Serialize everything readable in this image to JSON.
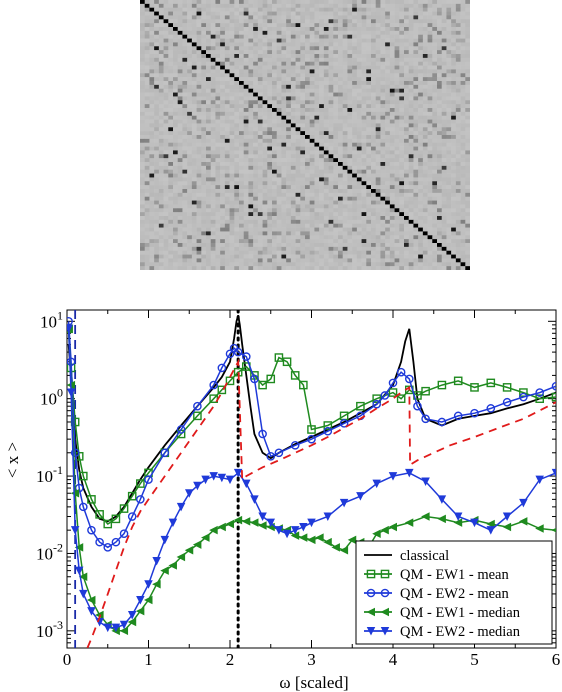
{
  "chart_data": [
    {
      "type": "heatmap",
      "rows": 70,
      "cols": 70,
      "colormap": [
        "#c4c4c4",
        "#000000"
      ],
      "values_note": "",
      "diagonal_value": 1.0,
      "background_value": 0.0,
      "highlights": [
        [
          12,
          3,
          0.9
        ],
        [
          15,
          9,
          0.8
        ],
        [
          24,
          7,
          0.85
        ],
        [
          33,
          6,
          0.9
        ],
        [
          40,
          5,
          0.7
        ],
        [
          45,
          2,
          0.85
        ],
        [
          52,
          11,
          0.8
        ],
        [
          60,
          14,
          0.75
        ],
        [
          48,
          20,
          0.9
        ],
        [
          36,
          18,
          0.85
        ],
        [
          53,
          23,
          0.9
        ],
        [
          55,
          23,
          0.8
        ],
        [
          29,
          10,
          0.7
        ],
        [
          22,
          31,
          0.85
        ],
        [
          30,
          37,
          0.8
        ],
        [
          27,
          38,
          0.85
        ],
        [
          44,
          28,
          0.9
        ],
        [
          50,
          33,
          0.8
        ],
        [
          57,
          40,
          0.75
        ],
        [
          38,
          46,
          0.85
        ],
        [
          42,
          51,
          0.8
        ],
        [
          47,
          55,
          0.9
        ],
        [
          25,
          55,
          0.7
        ],
        [
          18,
          48,
          0.8
        ],
        [
          7,
          39,
          0.85
        ],
        [
          9,
          44,
          0.75
        ],
        [
          14,
          60,
          0.8
        ],
        [
          4,
          58,
          0.7
        ],
        [
          62,
          47,
          0.8
        ],
        [
          66,
          30,
          0.85
        ],
        [
          64,
          12,
          0.7
        ],
        [
          3,
          22,
          0.75
        ],
        [
          8,
          26,
          0.85
        ],
        [
          56,
          63,
          0.8
        ],
        [
          59,
          66,
          0.9
        ],
        [
          20,
          14,
          0.8
        ],
        [
          11,
          17,
          0.85
        ],
        [
          31,
          25,
          0.75
        ],
        [
          39,
          34,
          0.8
        ],
        [
          43,
          64,
          0.7
        ]
      ]
    },
    {
      "type": "line",
      "xlabel": "ω [scaled]",
      "ylabel": "< x >",
      "xlim": [
        0,
        6
      ],
      "ylim": [
        0.0006,
        14
      ],
      "yscale": "log",
      "xticks": [
        0,
        1,
        2,
        3,
        4,
        5,
        6
      ],
      "yticks": [
        {
          "value": 0.001,
          "base": "10",
          "exp": "-3"
        },
        {
          "value": 0.01,
          "base": "10",
          "exp": "-2"
        },
        {
          "value": 0.1,
          "base": "10",
          "exp": "-1"
        },
        {
          "value": 1,
          "base": "10",
          "exp": "0"
        },
        {
          "value": 10,
          "base": "10",
          "exp": "1"
        }
      ],
      "vlines": [
        {
          "x": 0.1,
          "color": "#1a2aa8",
          "style": "dashed"
        },
        {
          "x": 2.1,
          "color": "#000000",
          "style": "dotted"
        }
      ],
      "legend_position": "bottom-right",
      "series": [
        {
          "name": "classical",
          "color": "#000000",
          "marker": "none",
          "x": [
            0.02,
            0.05,
            0.08,
            0.1,
            0.15,
            0.2,
            0.3,
            0.4,
            0.5,
            0.6,
            0.7,
            0.8,
            0.9,
            1.0,
            1.2,
            1.4,
            1.6,
            1.8,
            1.9,
            2.0,
            2.05,
            2.08,
            2.1,
            2.12,
            2.15,
            2.2,
            2.25,
            2.3,
            2.4,
            2.5,
            2.6,
            2.8,
            3.0,
            3.2,
            3.4,
            3.6,
            3.8,
            4.0,
            4.1,
            4.15,
            4.2,
            4.25,
            4.3,
            4.4,
            4.6,
            4.8,
            5.0,
            5.2,
            5.4,
            5.6,
            5.8,
            6.0
          ],
          "values": [
            5,
            2,
            0.6,
            0.3,
            0.12,
            0.07,
            0.04,
            0.028,
            0.026,
            0.03,
            0.04,
            0.06,
            0.09,
            0.13,
            0.25,
            0.45,
            0.8,
            1.4,
            1.9,
            3,
            6,
            10,
            12,
            9,
            5,
            2,
            0.8,
            0.35,
            0.2,
            0.17,
            0.2,
            0.26,
            0.32,
            0.4,
            0.5,
            0.65,
            0.85,
            1.5,
            3,
            5.5,
            8,
            3,
            1,
            0.55,
            0.45,
            0.55,
            0.6,
            0.65,
            0.75,
            0.85,
            1.0,
            1.2
          ]
        },
        {
          "name": "QM - EW1 - mean",
          "color": "#1f8a1f",
          "marker": "square",
          "x": [
            0.02,
            0.05,
            0.1,
            0.15,
            0.2,
            0.3,
            0.4,
            0.5,
            0.6,
            0.7,
            0.8,
            0.9,
            1.0,
            1.2,
            1.4,
            1.6,
            1.8,
            1.9,
            2.0,
            2.1,
            2.2,
            2.3,
            2.4,
            2.5,
            2.6,
            2.7,
            2.8,
            2.9,
            3.0,
            3.2,
            3.4,
            3.6,
            3.8,
            4.0,
            4.1,
            4.2,
            4.3,
            4.4,
            4.6,
            4.8,
            5.0,
            5.2,
            5.4,
            5.6,
            5.8,
            6.0
          ],
          "values": [
            8,
            2.5,
            0.5,
            0.18,
            0.1,
            0.05,
            0.032,
            0.024,
            0.028,
            0.038,
            0.055,
            0.08,
            0.11,
            0.2,
            0.35,
            0.6,
            1.0,
            1.3,
            1.7,
            2.2,
            2.6,
            2.0,
            1.5,
            1.8,
            3.4,
            3.0,
            2.0,
            1.5,
            0.4,
            0.45,
            0.6,
            0.8,
            1.0,
            1.2,
            1.0,
            1.3,
            1.1,
            1.25,
            1.5,
            1.7,
            1.4,
            1.6,
            1.4,
            1.2,
            1.0,
            1.05
          ]
        },
        {
          "name": "QM - EW2 - mean",
          "color": "#1f3ad9",
          "marker": "circle",
          "x": [
            0.02,
            0.05,
            0.1,
            0.15,
            0.2,
            0.3,
            0.4,
            0.5,
            0.6,
            0.7,
            0.8,
            0.9,
            1.0,
            1.2,
            1.4,
            1.6,
            1.8,
            1.9,
            2.0,
            2.05,
            2.1,
            2.2,
            2.3,
            2.4,
            2.5,
            2.6,
            2.8,
            3.0,
            3.2,
            3.4,
            3.6,
            3.8,
            3.9,
            4.0,
            4.1,
            4.2,
            4.3,
            4.4,
            4.6,
            4.8,
            5.0,
            5.2,
            5.4,
            5.6,
            5.8,
            6.0
          ],
          "values": [
            10,
            3,
            0.2,
            0.07,
            0.04,
            0.02,
            0.014,
            0.012,
            0.014,
            0.018,
            0.03,
            0.05,
            0.09,
            0.2,
            0.4,
            0.8,
            1.5,
            2.5,
            3.8,
            4.5,
            4.0,
            3.5,
            1.8,
            0.35,
            0.18,
            0.2,
            0.25,
            0.3,
            0.38,
            0.48,
            0.6,
            0.85,
            1.1,
            1.6,
            2.2,
            1.8,
            0.8,
            0.55,
            0.5,
            0.6,
            0.65,
            0.75,
            0.9,
            1.05,
            1.2,
            1.45
          ]
        },
        {
          "name": "QM - EW1 - median",
          "color": "#1f8a1f",
          "marker": "triangle-left",
          "x": [
            0.02,
            0.05,
            0.1,
            0.15,
            0.2,
            0.3,
            0.4,
            0.5,
            0.6,
            0.7,
            0.8,
            0.9,
            1.0,
            1.1,
            1.2,
            1.3,
            1.4,
            1.5,
            1.6,
            1.7,
            1.8,
            1.9,
            2.0,
            2.1,
            2.2,
            2.3,
            2.4,
            2.5,
            2.6,
            2.7,
            2.8,
            2.9,
            3.0,
            3.1,
            3.2,
            3.3,
            3.4,
            3.5,
            3.6,
            3.7,
            3.8,
            3.9,
            4.0,
            4.2,
            4.4,
            4.6,
            4.8,
            5.0,
            5.2,
            5.4,
            5.6,
            5.8,
            6.0
          ],
          "values": [
            8,
            1.5,
            0.06,
            0.012,
            0.005,
            0.0025,
            0.0016,
            0.0012,
            0.001,
            0.001,
            0.0013,
            0.0018,
            0.0025,
            0.004,
            0.006,
            0.007,
            0.009,
            0.011,
            0.013,
            0.016,
            0.02,
            0.022,
            0.024,
            0.027,
            0.026,
            0.025,
            0.023,
            0.022,
            0.021,
            0.02,
            0.017,
            0.016,
            0.015,
            0.016,
            0.014,
            0.012,
            0.011,
            0.015,
            0.014,
            0.012,
            0.018,
            0.02,
            0.022,
            0.025,
            0.03,
            0.028,
            0.025,
            0.027,
            0.024,
            0.022,
            0.026,
            0.021,
            0.02
          ]
        },
        {
          "name": "QM - EW2 - median",
          "color": "#1f3ad9",
          "marker": "triangle-down",
          "x": [
            0.02,
            0.05,
            0.1,
            0.15,
            0.2,
            0.3,
            0.4,
            0.5,
            0.6,
            0.7,
            0.8,
            0.9,
            1.0,
            1.1,
            1.2,
            1.3,
            1.4,
            1.5,
            1.6,
            1.7,
            1.8,
            1.9,
            2.0,
            2.1,
            2.2,
            2.3,
            2.4,
            2.5,
            2.6,
            2.7,
            2.8,
            2.9,
            3.0,
            3.2,
            3.4,
            3.6,
            3.8,
            4.0,
            4.2,
            4.4,
            4.6,
            4.8,
            5.0,
            5.2,
            5.4,
            5.6,
            5.8,
            6.0
          ],
          "values": [
            8,
            1.2,
            0.02,
            0.006,
            0.003,
            0.0018,
            0.0013,
            0.0011,
            0.0011,
            0.0012,
            0.0016,
            0.0025,
            0.004,
            0.008,
            0.015,
            0.025,
            0.04,
            0.06,
            0.075,
            0.09,
            0.1,
            0.095,
            0.09,
            0.11,
            0.08,
            0.05,
            0.03,
            0.025,
            0.02,
            0.018,
            0.02,
            0.022,
            0.025,
            0.03,
            0.045,
            0.055,
            0.08,
            0.1,
            0.11,
            0.085,
            0.05,
            0.03,
            0.025,
            0.02,
            0.03,
            0.045,
            0.09,
            0.11
          ]
        },
        {
          "name": "",
          "color": "#e01b1b",
          "marker": "none",
          "style": "dashed",
          "x": [
            0.25,
            0.3,
            0.4,
            0.5,
            0.6,
            0.7,
            0.8,
            0.9,
            1.0,
            1.2,
            1.4,
            1.6,
            1.8,
            1.9,
            2.0,
            2.05,
            2.1,
            2.15,
            2.2,
            2.4,
            2.6,
            2.8,
            3.0,
            3.2,
            3.4,
            3.6,
            3.8,
            4.0,
            4.1,
            4.2,
            4.21,
            4.3,
            4.5,
            4.7,
            5.0,
            5.3,
            5.6,
            6.0
          ],
          "values": [
            0.0006,
            0.0008,
            0.0015,
            0.003,
            0.006,
            0.012,
            0.022,
            0.035,
            0.05,
            0.1,
            0.2,
            0.4,
            0.8,
            1.2,
            1.9,
            2.4,
            3.0,
            0.09,
            0.1,
            0.13,
            0.16,
            0.2,
            0.25,
            0.32,
            0.42,
            0.55,
            0.75,
            1.0,
            1.2,
            1.4,
            0.14,
            0.16,
            0.2,
            0.25,
            0.32,
            0.42,
            0.55,
            0.9
          ]
        }
      ]
    }
  ]
}
